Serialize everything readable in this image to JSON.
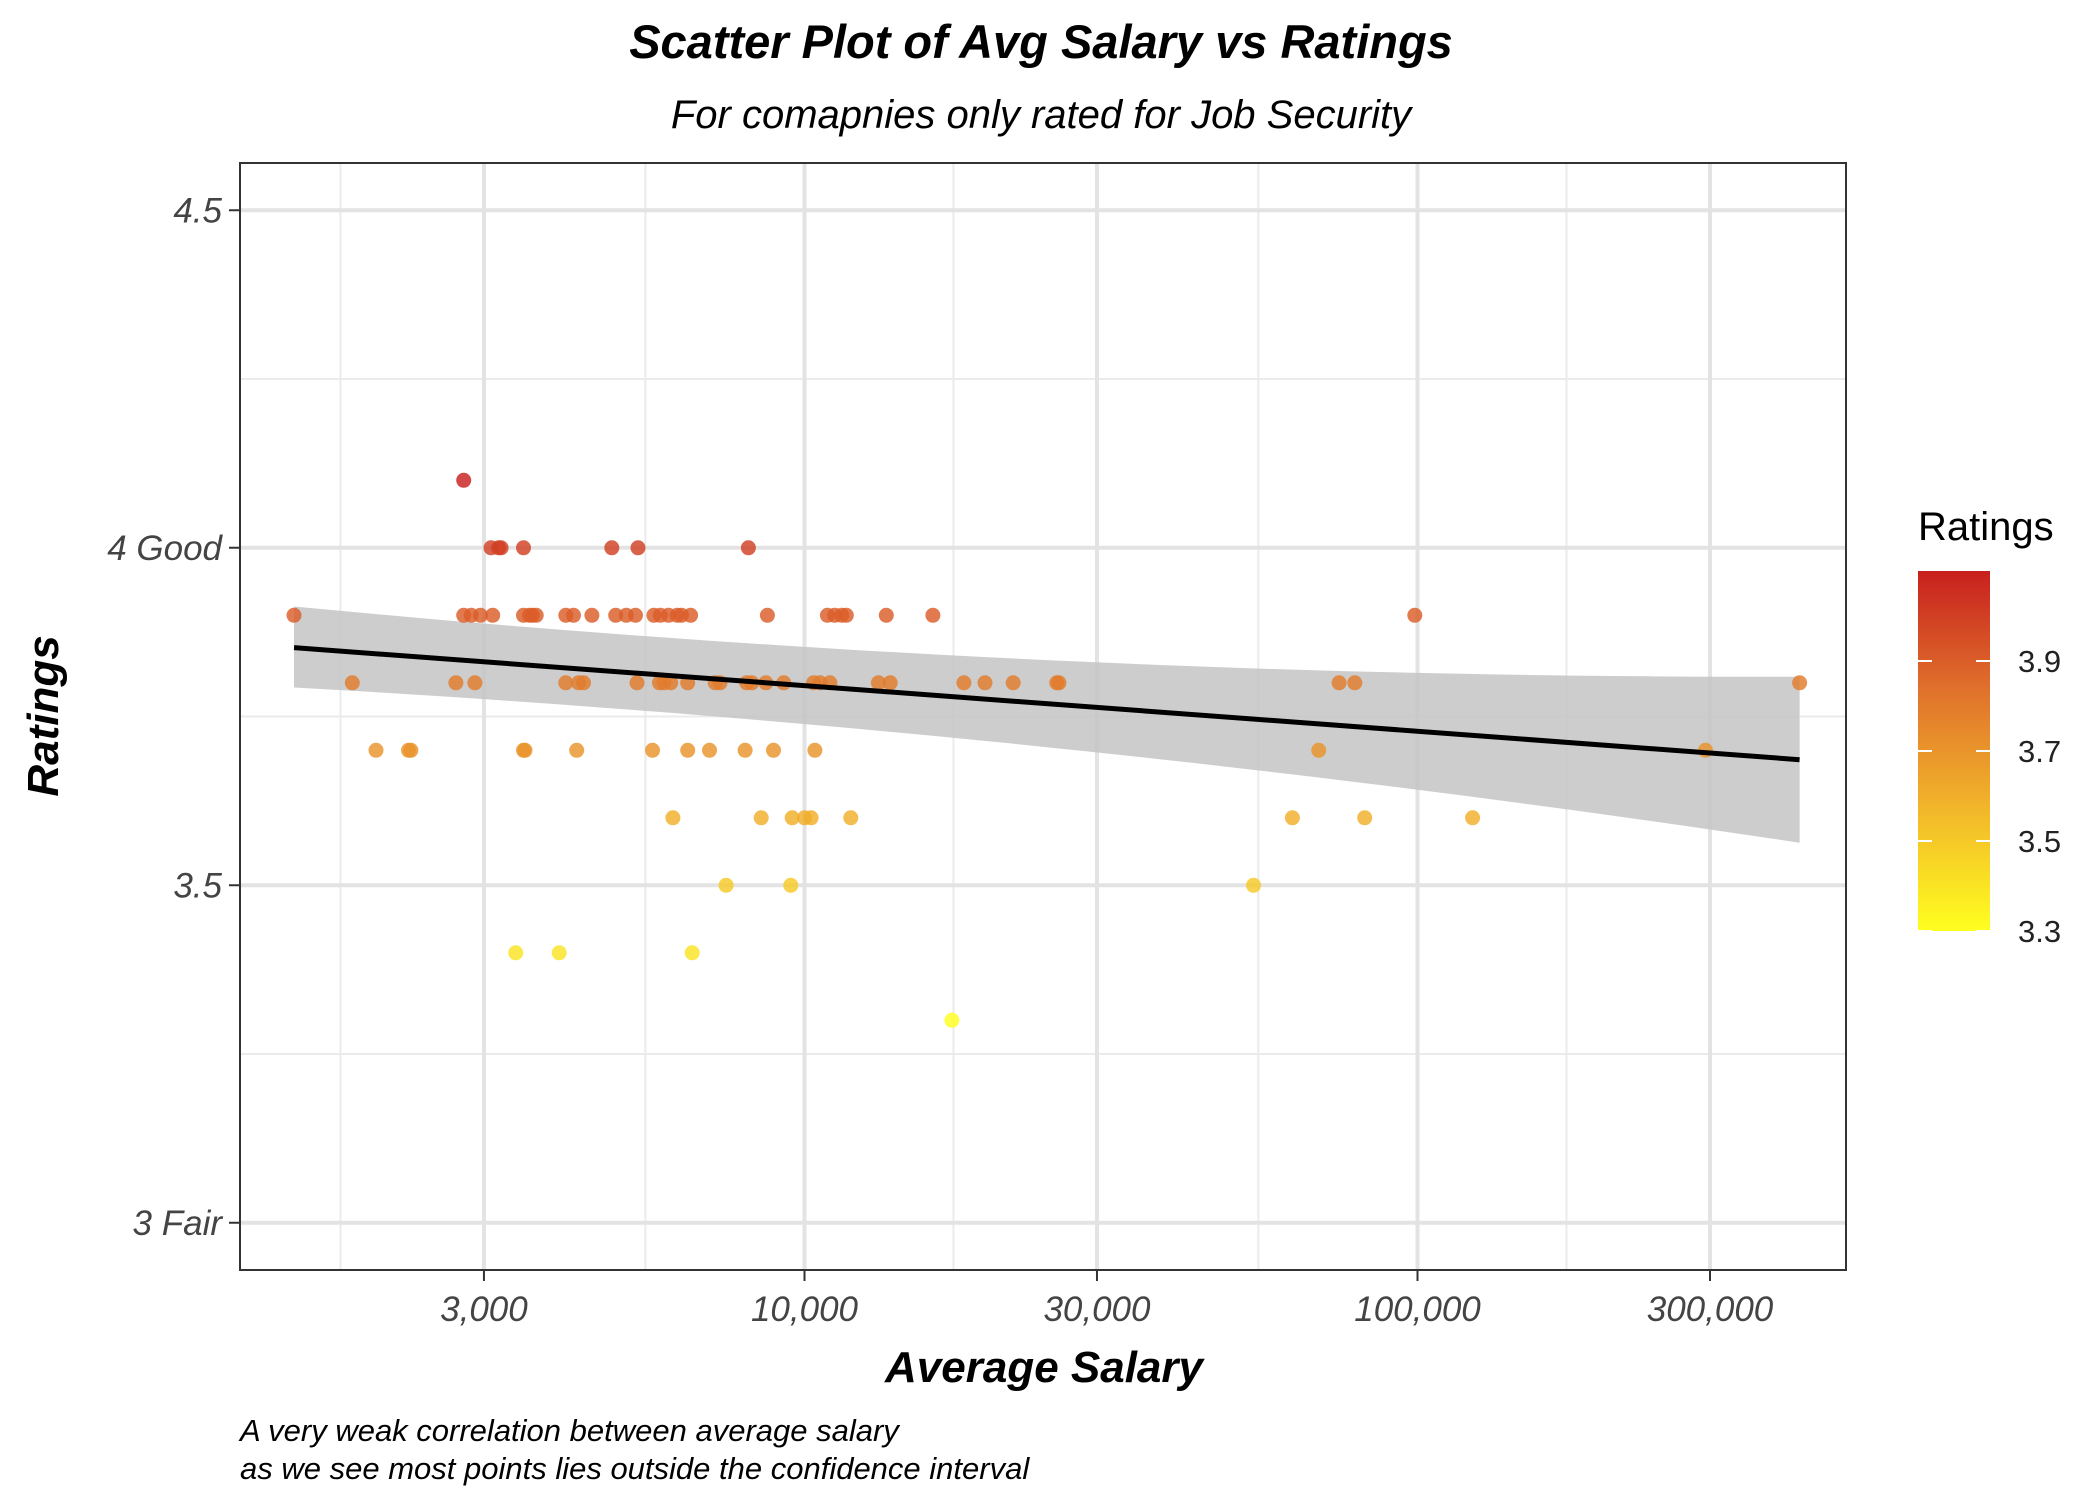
{
  "chart_data": {
    "type": "scatter",
    "title": "Scatter Plot of Avg Salary vs Ratings",
    "subtitle": "For comapnies only rated for Job Security",
    "xlabel": "Average Salary",
    "ylabel": "Ratings",
    "caption_lines": [
      "A very weak correlation between average salary",
      "as we see most points lies outside the confidence interval"
    ],
    "x_scale": "log10",
    "xlim": [
      1200,
      500000
    ],
    "ylim": [
      2.93,
      4.57
    ],
    "x_ticks": [
      {
        "value": 3000,
        "label": "3,000"
      },
      {
        "value": 10000,
        "label": "10,000"
      },
      {
        "value": 30000,
        "label": "30,000"
      },
      {
        "value": 100000,
        "label": "100,000"
      },
      {
        "value": 300000,
        "label": "300,000"
      }
    ],
    "x_minor_ticks": [
      1750,
      5500,
      17500,
      55000,
      175000
    ],
    "y_ticks": [
      {
        "value": 3.0,
        "label": "3 Fair"
      },
      {
        "value": 3.5,
        "label": "3.5"
      },
      {
        "value": 4.0,
        "label": "4 Good"
      },
      {
        "value": 4.5,
        "label": "4.5"
      }
    ],
    "y_minor_ticks": [
      3.25,
      3.75,
      4.25
    ],
    "grid": true,
    "legend": {
      "title": "Ratings",
      "type": "colorbar",
      "position": "right",
      "range": [
        3.3,
        4.1
      ],
      "ticks": [
        {
          "value": 3.3,
          "label": "3.3"
        },
        {
          "value": 3.5,
          "label": "3.5"
        },
        {
          "value": 3.7,
          "label": "3.7"
        },
        {
          "value": 3.9,
          "label": "3.9"
        }
      ],
      "colors": [
        "#ffff1f",
        "#f2b72a",
        "#e0722c",
        "#c8201e"
      ]
    },
    "series": [
      {
        "points": [
          {
            "x": 1470,
            "y": 3.9
          },
          {
            "x": 1830,
            "y": 3.8
          },
          {
            "x": 2000,
            "y": 3.7
          },
          {
            "x": 2260,
            "y": 3.7
          },
          {
            "x": 2280,
            "y": 3.7
          },
          {
            "x": 2700,
            "y": 3.8
          },
          {
            "x": 2780,
            "y": 4.1
          },
          {
            "x": 2780,
            "y": 3.9
          },
          {
            "x": 2860,
            "y": 3.9
          },
          {
            "x": 2900,
            "y": 3.8
          },
          {
            "x": 2960,
            "y": 3.9
          },
          {
            "x": 3080,
            "y": 4.0
          },
          {
            "x": 3100,
            "y": 3.9
          },
          {
            "x": 3170,
            "y": 4.0
          },
          {
            "x": 3200,
            "y": 4.0
          },
          {
            "x": 3380,
            "y": 3.4
          },
          {
            "x": 3480,
            "y": 3.9
          },
          {
            "x": 3480,
            "y": 4.0
          },
          {
            "x": 3480,
            "y": 3.7
          },
          {
            "x": 3500,
            "y": 3.7
          },
          {
            "x": 3560,
            "y": 3.9
          },
          {
            "x": 3600,
            "y": 3.9
          },
          {
            "x": 3650,
            "y": 3.9
          },
          {
            "x": 3980,
            "y": 3.4
          },
          {
            "x": 4080,
            "y": 3.9
          },
          {
            "x": 4080,
            "y": 3.8
          },
          {
            "x": 4200,
            "y": 3.9
          },
          {
            "x": 4250,
            "y": 3.7
          },
          {
            "x": 4280,
            "y": 3.8
          },
          {
            "x": 4360,
            "y": 3.8
          },
          {
            "x": 4500,
            "y": 3.9
          },
          {
            "x": 4850,
            "y": 4.0
          },
          {
            "x": 4920,
            "y": 3.9
          },
          {
            "x": 5120,
            "y": 3.9
          },
          {
            "x": 5300,
            "y": 3.9
          },
          {
            "x": 5330,
            "y": 3.8
          },
          {
            "x": 5350,
            "y": 4.0
          },
          {
            "x": 5650,
            "y": 3.7
          },
          {
            "x": 5680,
            "y": 3.9
          },
          {
            "x": 5800,
            "y": 3.8
          },
          {
            "x": 5820,
            "y": 3.9
          },
          {
            "x": 5900,
            "y": 3.8
          },
          {
            "x": 6000,
            "y": 3.9
          },
          {
            "x": 6050,
            "y": 3.8
          },
          {
            "x": 6100,
            "y": 3.6
          },
          {
            "x": 6200,
            "y": 3.9
          },
          {
            "x": 6300,
            "y": 3.9
          },
          {
            "x": 6450,
            "y": 3.8
          },
          {
            "x": 6450,
            "y": 3.7
          },
          {
            "x": 6520,
            "y": 3.9
          },
          {
            "x": 6560,
            "y": 3.4
          },
          {
            "x": 7000,
            "y": 3.7
          },
          {
            "x": 7150,
            "y": 3.8
          },
          {
            "x": 7280,
            "y": 3.8
          },
          {
            "x": 7450,
            "y": 3.5
          },
          {
            "x": 8000,
            "y": 3.7
          },
          {
            "x": 8050,
            "y": 3.8
          },
          {
            "x": 8100,
            "y": 4.0
          },
          {
            "x": 8200,
            "y": 3.8
          },
          {
            "x": 8500,
            "y": 3.6
          },
          {
            "x": 8650,
            "y": 3.8
          },
          {
            "x": 8700,
            "y": 3.9
          },
          {
            "x": 8900,
            "y": 3.7
          },
          {
            "x": 9250,
            "y": 3.8
          },
          {
            "x": 9500,
            "y": 3.5
          },
          {
            "x": 9550,
            "y": 3.6
          },
          {
            "x": 10000,
            "y": 3.6
          },
          {
            "x": 10250,
            "y": 3.6
          },
          {
            "x": 10350,
            "y": 3.8
          },
          {
            "x": 10400,
            "y": 3.7
          },
          {
            "x": 10600,
            "y": 3.8
          },
          {
            "x": 10900,
            "y": 3.9
          },
          {
            "x": 11000,
            "y": 3.8
          },
          {
            "x": 11200,
            "y": 3.9
          },
          {
            "x": 11500,
            "y": 3.9
          },
          {
            "x": 11700,
            "y": 3.9
          },
          {
            "x": 11900,
            "y": 3.6
          },
          {
            "x": 13200,
            "y": 3.8
          },
          {
            "x": 13600,
            "y": 3.9
          },
          {
            "x": 13800,
            "y": 3.8
          },
          {
            "x": 16200,
            "y": 3.9
          },
          {
            "x": 17400,
            "y": 3.3
          },
          {
            "x": 18200,
            "y": 3.8
          },
          {
            "x": 19700,
            "y": 3.8
          },
          {
            "x": 21900,
            "y": 3.8
          },
          {
            "x": 25800,
            "y": 3.8
          },
          {
            "x": 26000,
            "y": 3.8
          },
          {
            "x": 54000,
            "y": 3.5
          },
          {
            "x": 62500,
            "y": 3.6
          },
          {
            "x": 69000,
            "y": 3.7
          },
          {
            "x": 74500,
            "y": 3.8
          },
          {
            "x": 79000,
            "y": 3.8
          },
          {
            "x": 82000,
            "y": 3.6
          },
          {
            "x": 99000,
            "y": 3.9
          },
          {
            "x": 123000,
            "y": 3.6
          },
          {
            "x": 295000,
            "y": 3.7
          },
          {
            "x": 420000,
            "y": 3.8
          }
        ]
      }
    ],
    "trend": {
      "method": "linear fit (log x)",
      "x": [
        1470,
        420000
      ],
      "y": [
        3.852,
        3.686
      ],
      "ci_lower": [
        3.793,
        3.563
      ],
      "ci_upper": [
        3.913,
        3.809
      ]
    }
  }
}
